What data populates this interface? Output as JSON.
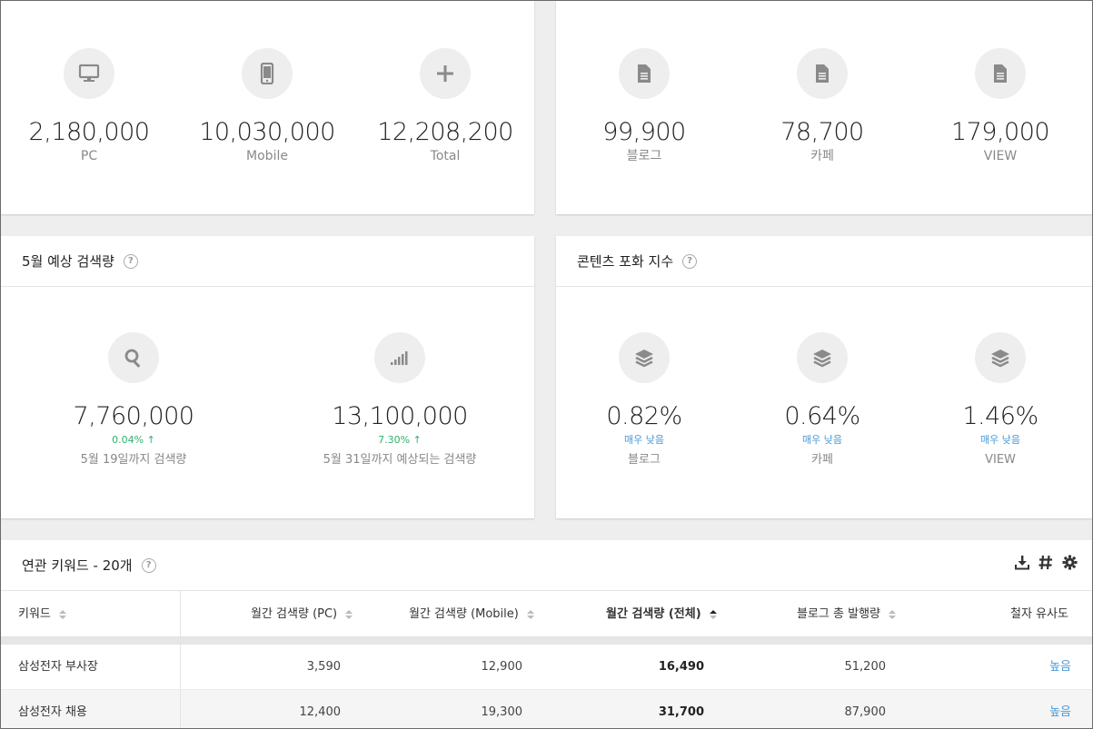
{
  "top_left": {
    "stats": [
      {
        "icon": "monitor-icon",
        "value": "2,180,000",
        "label": "PC"
      },
      {
        "icon": "mobile-icon",
        "value": "10,030,000",
        "label": "Mobile"
      },
      {
        "icon": "plus-icon",
        "value": "12,208,200",
        "label": "Total"
      }
    ]
  },
  "top_right": {
    "stats": [
      {
        "icon": "document-icon",
        "value": "99,900",
        "label": "블로그"
      },
      {
        "icon": "document-icon",
        "value": "78,700",
        "label": "카페"
      },
      {
        "icon": "document-icon",
        "value": "179,000",
        "label": "VIEW"
      }
    ]
  },
  "forecast": {
    "title": "5월 예상 검색량",
    "items": [
      {
        "icon": "search-icon",
        "value": "7,760,000",
        "trend": "0.04%",
        "caption": "5월 19일까지 검색량"
      },
      {
        "icon": "signal-bars-icon",
        "value": "13,100,000",
        "trend": "7.30%",
        "caption": "5월 31일까지 예상되는 검색량"
      }
    ]
  },
  "saturation": {
    "title": "콘텐츠 포화 지수",
    "items": [
      {
        "icon": "layers-icon",
        "value": "0.82%",
        "level": "매우 낮음",
        "label": "블로그"
      },
      {
        "icon": "layers-icon",
        "value": "0.64%",
        "level": "매우 낮음",
        "label": "카페"
      },
      {
        "icon": "layers-icon",
        "value": "1.46%",
        "level": "매우 낮음",
        "label": "VIEW"
      }
    ]
  },
  "related": {
    "title": "연관 키워드 - 20개",
    "columns": [
      "키워드",
      "월간 검색량 (PC)",
      "월간 검색량 (Mobile)",
      "월간 검색량 (전체)",
      "블로그 총 발행량",
      "철자 유사도"
    ],
    "rows": [
      [
        "삼성전자 부사장",
        "3,590",
        "12,900",
        "16,490",
        "51,200",
        "높음"
      ],
      [
        "삼성전자 채용",
        "12,400",
        "19,300",
        "31,700",
        "87,900",
        "높음"
      ]
    ]
  },
  "colors": {
    "up": "#2fb26c",
    "level": "#4a9ad6",
    "bg": "#eeeeee"
  }
}
